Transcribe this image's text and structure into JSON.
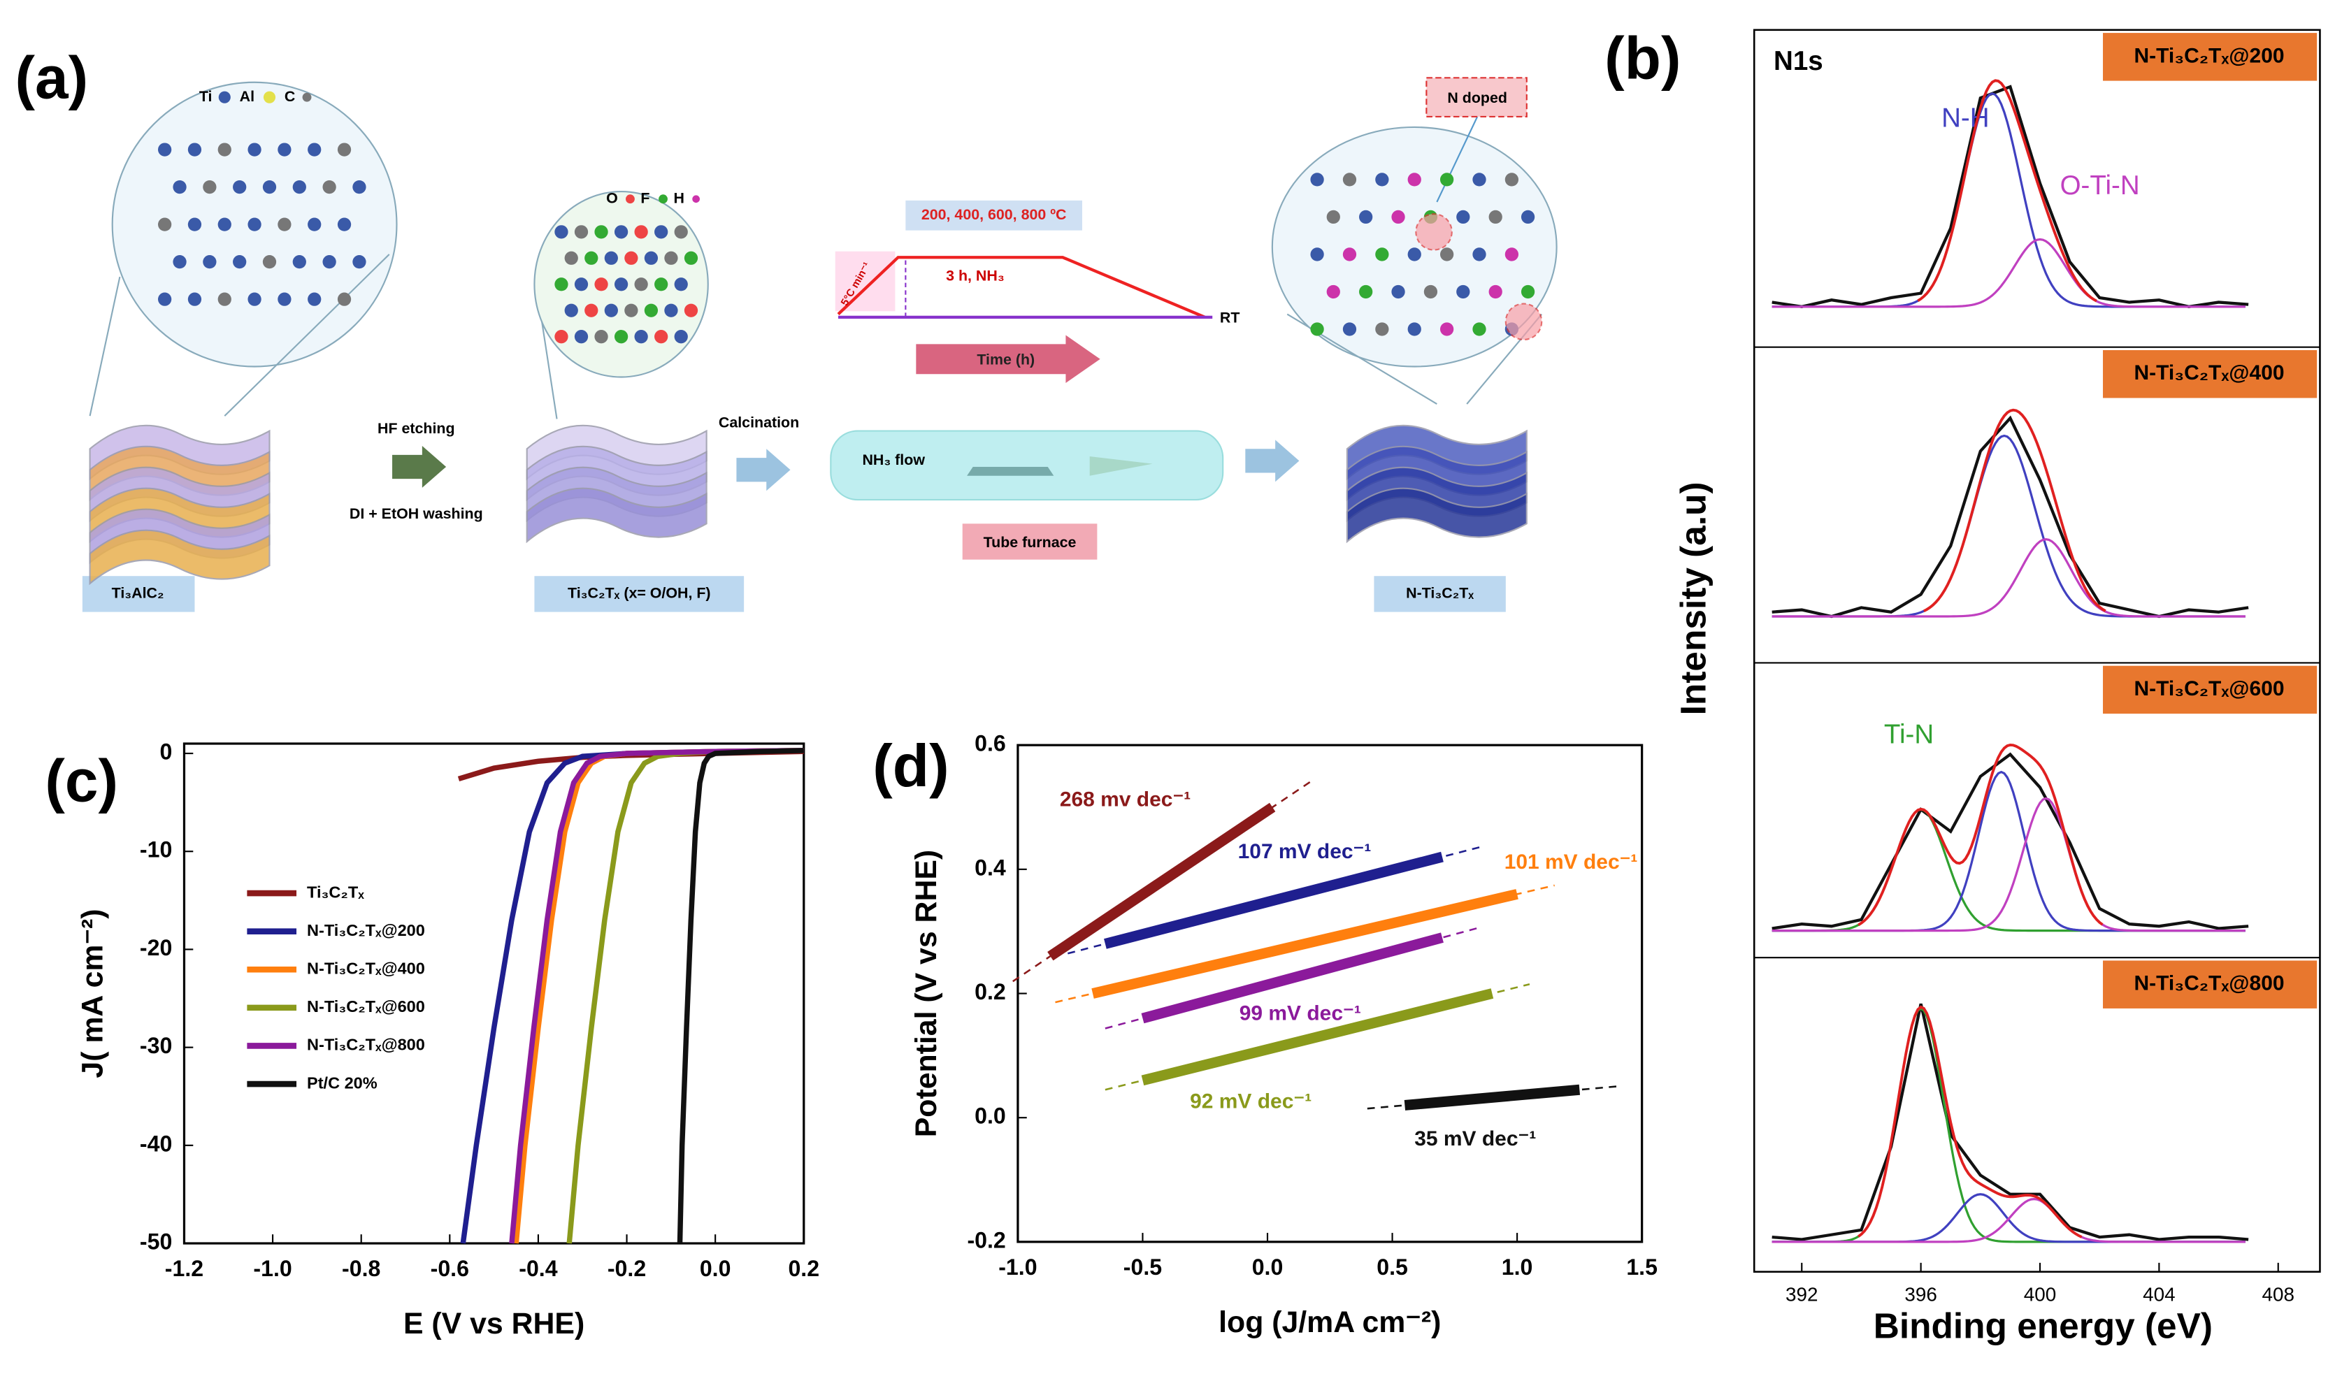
{
  "panel_labels": [
    "(a)",
    "(b)",
    "(c)",
    "(d)"
  ],
  "schematic": {
    "legend1": [
      "Ti",
      "Al",
      "C"
    ],
    "legend2": [
      "O",
      "F",
      "H"
    ],
    "temperatures": "200, 400, 600, 800 ºC",
    "ramp": "5°C min⁻¹",
    "hold": "3 h, NH₃",
    "end": "RT",
    "time": "Time (h)",
    "step1": "HF etching",
    "step1b": "DI + EtOH washing",
    "step2": "Calcination",
    "flow": "NH₃ flow",
    "furnace": "Tube furnace",
    "doped": "N doped",
    "mat1": "Ti₃AlC₂",
    "mat2": "Ti₃C₂Tₓ (x= O/OH, F)",
    "mat3": "N-Ti₃C₂Tₓ"
  },
  "chart_data": [
    {
      "type": "xps",
      "xlabel": "Binding energy (eV)",
      "ylabel": "Intensity (a.u)",
      "xlim": [
        390,
        409
      ],
      "xticks": [
        392,
        396,
        400,
        404,
        408
      ],
      "ylim": [
        0,
        1.1
      ],
      "panels": [
        {
          "tag": "N-Ti₃C₂Tₓ@200",
          "title": "N1s",
          "x": [
            391,
            392,
            393,
            394,
            395,
            396,
            397,
            398,
            399,
            400,
            401,
            402,
            403,
            404,
            405,
            406,
            407
          ],
          "values": [
            0.02,
            0.0,
            0.03,
            0.01,
            0.04,
            0.06,
            0.35,
            0.93,
            0.98,
            0.55,
            0.2,
            0.04,
            0.02,
            0.03,
            0.0,
            0.02,
            0.01
          ],
          "peaks": [
            {
              "label": "N-H",
              "color": "#4040c0",
              "center": 398.4,
              "height": 0.95,
              "fwhm": 2.2
            },
            {
              "label": "O-Ti-N",
              "color": "#c040c0",
              "center": 400.0,
              "height": 0.3,
              "fwhm": 2.0
            }
          ]
        },
        {
          "tag": "N-Ti₃C₂Tₓ@400",
          "x": [
            391,
            392,
            393,
            394,
            395,
            396,
            397,
            398,
            399,
            400,
            401,
            402,
            403,
            404,
            405,
            406,
            407
          ],
          "values": [
            0.02,
            0.03,
            0.0,
            0.04,
            0.02,
            0.1,
            0.32,
            0.75,
            0.9,
            0.62,
            0.28,
            0.06,
            0.03,
            0.0,
            0.03,
            0.02,
            0.04
          ],
          "peaks": [
            {
              "color": "#4040c0",
              "center": 398.8,
              "height": 0.82,
              "fwhm": 2.4
            },
            {
              "color": "#c040c0",
              "center": 400.2,
              "height": 0.35,
              "fwhm": 2.0
            }
          ]
        },
        {
          "tag": "N-Ti₃C₂Tₓ@600",
          "x": [
            391,
            392,
            393,
            394,
            395,
            396,
            397,
            398,
            399,
            400,
            401,
            402,
            403,
            404,
            405,
            406,
            407
          ],
          "values": [
            0.01,
            0.03,
            0.02,
            0.05,
            0.3,
            0.55,
            0.45,
            0.7,
            0.8,
            0.65,
            0.4,
            0.1,
            0.03,
            0.02,
            0.04,
            0.01,
            0.02
          ],
          "peaks": [
            {
              "label": "Ti-N",
              "color": "#30a030",
              "center": 396.0,
              "height": 0.55,
              "fwhm": 2.0
            },
            {
              "color": "#4040c0",
              "center": 398.7,
              "height": 0.72,
              "fwhm": 1.8
            },
            {
              "color": "#c040c0",
              "center": 400.2,
              "height": 0.6,
              "fwhm": 1.8
            }
          ]
        },
        {
          "tag": "N-Ti₃C₂Tₓ@800",
          "x": [
            391,
            392,
            393,
            394,
            395,
            396,
            397,
            398,
            399,
            400,
            401,
            402,
            403,
            404,
            405,
            406,
            407
          ],
          "values": [
            0.02,
            0.01,
            0.03,
            0.05,
            0.4,
            1.0,
            0.45,
            0.28,
            0.2,
            0.2,
            0.06,
            0.02,
            0.03,
            0.01,
            0.02,
            0.02,
            0.01
          ],
          "peaks": [
            {
              "color": "#30a030",
              "center": 396.0,
              "height": 0.98,
              "fwhm": 1.8
            },
            {
              "color": "#4040c0",
              "center": 398.0,
              "height": 0.2,
              "fwhm": 1.8
            },
            {
              "color": "#c040c0",
              "center": 399.8,
              "height": 0.18,
              "fwhm": 1.8
            }
          ]
        }
      ]
    },
    {
      "type": "line",
      "xlabel": "E (V vs RHE)",
      "ylabel": "J( mA cm⁻²)",
      "xlim": [
        -1.2,
        0.2
      ],
      "ylim": [
        -50,
        1
      ],
      "xticks": [
        -1.2,
        {
          "value": -1.0,
          "label": "-1.0"
        },
        -0.8,
        -0.6,
        -0.4,
        -0.2,
        {
          "value": 0,
          "label": "0.0"
        },
        0.2
      ],
      "yticks": [
        0,
        -10,
        -20,
        -30,
        -40,
        -50
      ],
      "series": [
        {
          "name": "Ti₃C₂Tₓ",
          "color": "#8b1a1a",
          "x": [
            -0.58,
            -0.5,
            -0.4,
            -0.3,
            -0.2,
            -0.1,
            0.0,
            0.2
          ],
          "values": [
            -2.6,
            -1.5,
            -0.8,
            -0.4,
            -0.2,
            -0.1,
            0,
            0.2
          ]
        },
        {
          "name": "N-Ti₃C₂Tₓ@200",
          "color": "#1f1f8f",
          "x": [
            -0.57,
            -0.54,
            -0.5,
            -0.46,
            -0.42,
            -0.38,
            -0.34,
            -0.3,
            -0.2,
            0,
            0.2
          ],
          "values": [
            -50,
            -40,
            -28,
            -17,
            -8,
            -3,
            -1,
            -0.3,
            0,
            0.2,
            0.3
          ]
        },
        {
          "name": "N-Ti₃C₂Tₓ@400",
          "color": "#ff7f0e",
          "x": [
            -0.45,
            -0.43,
            -0.4,
            -0.37,
            -0.34,
            -0.31,
            -0.28,
            -0.25,
            -0.2,
            0,
            0.2
          ],
          "values": [
            -50,
            -40,
            -28,
            -17,
            -8,
            -3,
            -1,
            -0.3,
            0,
            0.2,
            0.3
          ]
        },
        {
          "name": "N-Ti₃C₂Tₓ@600",
          "color": "#8a9a1b",
          "x": [
            -0.33,
            -0.31,
            -0.28,
            -0.25,
            -0.22,
            -0.19,
            -0.16,
            -0.13,
            -0.08,
            0,
            0.2
          ],
          "values": [
            -50,
            -40,
            -28,
            -17,
            -8,
            -3,
            -1,
            -0.3,
            0,
            0.2,
            0.3
          ]
        },
        {
          "name": "N-Ti₃C₂Tₓ@800",
          "color": "#8b1a9b",
          "x": [
            -0.46,
            -0.44,
            -0.41,
            -0.38,
            -0.35,
            -0.32,
            -0.29,
            -0.26,
            -0.2,
            0,
            0.2
          ],
          "values": [
            -50,
            -40,
            -28,
            -17,
            -8,
            -3,
            -1,
            -0.3,
            0,
            0.2,
            0.3
          ]
        },
        {
          "name": "Pt/C 20%",
          "color": "#111111",
          "x": [
            -0.08,
            -0.075,
            -0.065,
            -0.055,
            -0.045,
            -0.035,
            -0.025,
            -0.015,
            0,
            0.1,
            0.2
          ],
          "values": [
            -50,
            -40,
            -28,
            -17,
            -8,
            -3,
            -1,
            -0.3,
            0,
            0.2,
            0.3
          ]
        }
      ]
    },
    {
      "type": "tafel",
      "xlabel": "log (J/mA cm⁻²)",
      "ylabel": "Potential (V vs RHE)",
      "xlim": [
        -1.0,
        1.5
      ],
      "ylim": [
        -0.2,
        0.6
      ],
      "xticks": [
        {
          "value": -1.0,
          "label": "-1.0"
        },
        -0.5,
        {
          "value": 0,
          "label": "0.0"
        },
        0.5,
        {
          "value": 1.0,
          "label": "1.0"
        },
        1.5
      ],
      "yticks": [
        -0.2,
        {
          "value": 0,
          "label": "0.0"
        },
        0.2,
        0.4,
        0.6
      ],
      "series": [
        {
          "color": "#8b1a1a",
          "x": [
            -0.87,
            0.02
          ],
          "values": [
            0.26,
            0.5
          ],
          "annotation": "268 mv dec⁻¹"
        },
        {
          "color": "#1f1f8f",
          "x": [
            -0.65,
            0.7
          ],
          "values": [
            0.28,
            0.42
          ],
          "annotation": "107 mV dec⁻¹"
        },
        {
          "color": "#ff7f0e",
          "x": [
            -0.7,
            1.0
          ],
          "values": [
            0.2,
            0.36
          ],
          "annotation": "101 mV dec⁻¹"
        },
        {
          "color": "#8b1a9b",
          "x": [
            -0.5,
            0.7
          ],
          "values": [
            0.16,
            0.29
          ],
          "annotation": "99 mV dec⁻¹"
        },
        {
          "color": "#8a9a1b",
          "x": [
            -0.5,
            0.9
          ],
          "values": [
            0.06,
            0.2
          ],
          "annotation": "92 mV dec⁻¹"
        },
        {
          "color": "#111111",
          "x": [
            0.55,
            1.25
          ],
          "values": [
            0.02,
            0.045
          ],
          "annotation": "35 mV dec⁻¹"
        }
      ]
    }
  ]
}
